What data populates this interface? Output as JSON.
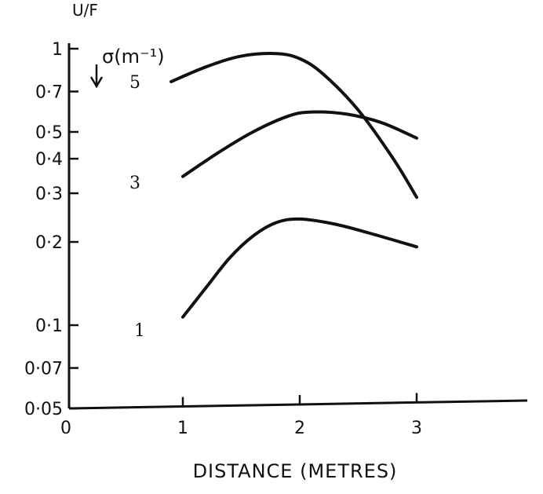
{
  "chart_data": {
    "type": "line",
    "title": "",
    "xlabel": "DISTANCE (METRES)",
    "ylabel": "U/F",
    "y_scale": "log",
    "xlim": [
      0,
      4
    ],
    "ylim": [
      0.05,
      1
    ],
    "x_ticks": [
      {
        "value": 0,
        "label": "0"
      },
      {
        "value": 1,
        "label": "1"
      },
      {
        "value": 2,
        "label": "2"
      },
      {
        "value": 3,
        "label": "3"
      }
    ],
    "y_ticks": [
      {
        "value": 1,
        "label": "1"
      },
      {
        "value": 0.7,
        "label": "0·7"
      },
      {
        "value": 0.5,
        "label": "0·5"
      },
      {
        "value": 0.4,
        "label": "0·4"
      },
      {
        "value": 0.3,
        "label": "0·3"
      },
      {
        "value": 0.2,
        "label": "0·2"
      },
      {
        "value": 0.1,
        "label": "0·1"
      },
      {
        "value": 0.07,
        "label": "0·07"
      },
      {
        "value": 0.05,
        "label": "0·05"
      }
    ],
    "legend_title": "σ(m⁻¹)",
    "series": [
      {
        "name": "5",
        "x": [
          0.9,
          1.2,
          1.5,
          1.8,
          2.0,
          2.2,
          2.5,
          2.8,
          3.0
        ],
        "y": [
          0.76,
          0.86,
          0.94,
          0.96,
          0.92,
          0.81,
          0.6,
          0.4,
          0.29
        ]
      },
      {
        "name": "3",
        "x": [
          1.0,
          1.3,
          1.6,
          1.9,
          2.1,
          2.4,
          2.7,
          3.0
        ],
        "y": [
          0.345,
          0.42,
          0.5,
          0.57,
          0.59,
          0.58,
          0.54,
          0.475
        ]
      },
      {
        "name": "1",
        "x": [
          1.0,
          1.2,
          1.4,
          1.6,
          1.8,
          2.0,
          2.3,
          2.6,
          3.0
        ],
        "y": [
          0.107,
          0.137,
          0.175,
          0.21,
          0.235,
          0.242,
          0.232,
          0.215,
          0.192
        ]
      }
    ],
    "grid": false,
    "legend": "none"
  }
}
